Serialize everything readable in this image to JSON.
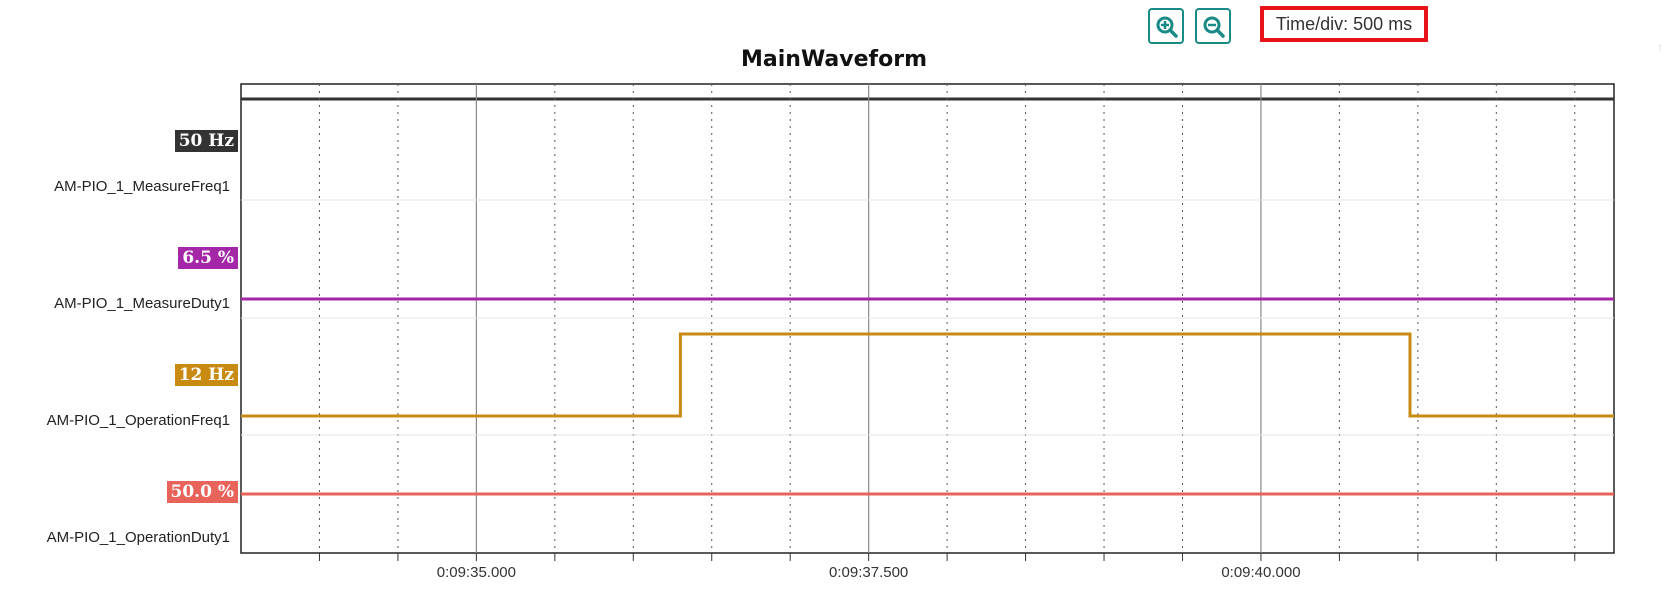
{
  "toolbar": {
    "zoom_in_icon": "zoom-in-icon",
    "zoom_out_icon": "zoom-out-icon",
    "time_div": "Time/div: 500 ms",
    "accent": "#1a8a86",
    "highlight": "#e8141a"
  },
  "chart": {
    "title": "MainWaveform",
    "x_axis_labels": [
      "0:09:35.000",
      "0:09:37.500",
      "0:09:40.000"
    ],
    "traces": [
      {
        "name": "AM-PIO_1_MeasureFreq1",
        "value_label": "50 Hz",
        "color": "#333333"
      },
      {
        "name": "AM-PIO_1_MeasureDuty1",
        "value_label": "6.5 %",
        "color": "#a427a8"
      },
      {
        "name": "AM-PIO_1_OperationFreq1",
        "value_label": "12 Hz",
        "color": "#c88a10"
      },
      {
        "name": "AM-PIO_1_OperationDuty1",
        "value_label": "50.0 %",
        "color": "#e8635a"
      }
    ]
  },
  "chart_data": {
    "type": "line",
    "title": "MainWaveform",
    "xlabel": "",
    "ylabel": "",
    "x_ticks": [
      "0:09:35.000",
      "0:09:37.500",
      "0:09:40.000"
    ],
    "x_range_s": [
      33.5,
      42.25
    ],
    "grid": true,
    "series": [
      {
        "name": "AM-PIO_1_MeasureFreq1",
        "value": "50 Hz",
        "steps": [
          [
            33.5,
            1
          ],
          [
            42.25,
            1
          ]
        ]
      },
      {
        "name": "AM-PIO_1_MeasureDuty1",
        "value": "6.5 %",
        "steps": [
          [
            33.5,
            0
          ],
          [
            40.75,
            0
          ],
          [
            40.75,
            0.02
          ],
          [
            42.25,
            0.02
          ]
        ]
      },
      {
        "name": "AM-PIO_1_OperationFreq1",
        "value": "12 Hz",
        "steps": [
          [
            33.5,
            0
          ],
          [
            36.3,
            0
          ],
          [
            36.3,
            1
          ],
          [
            40.95,
            1
          ],
          [
            40.95,
            0
          ],
          [
            42.25,
            0
          ]
        ]
      },
      {
        "name": "AM-PIO_1_OperationDuty1",
        "value": "50.0 %",
        "steps": [
          [
            33.5,
            0
          ],
          [
            42.25,
            0
          ]
        ]
      }
    ]
  }
}
